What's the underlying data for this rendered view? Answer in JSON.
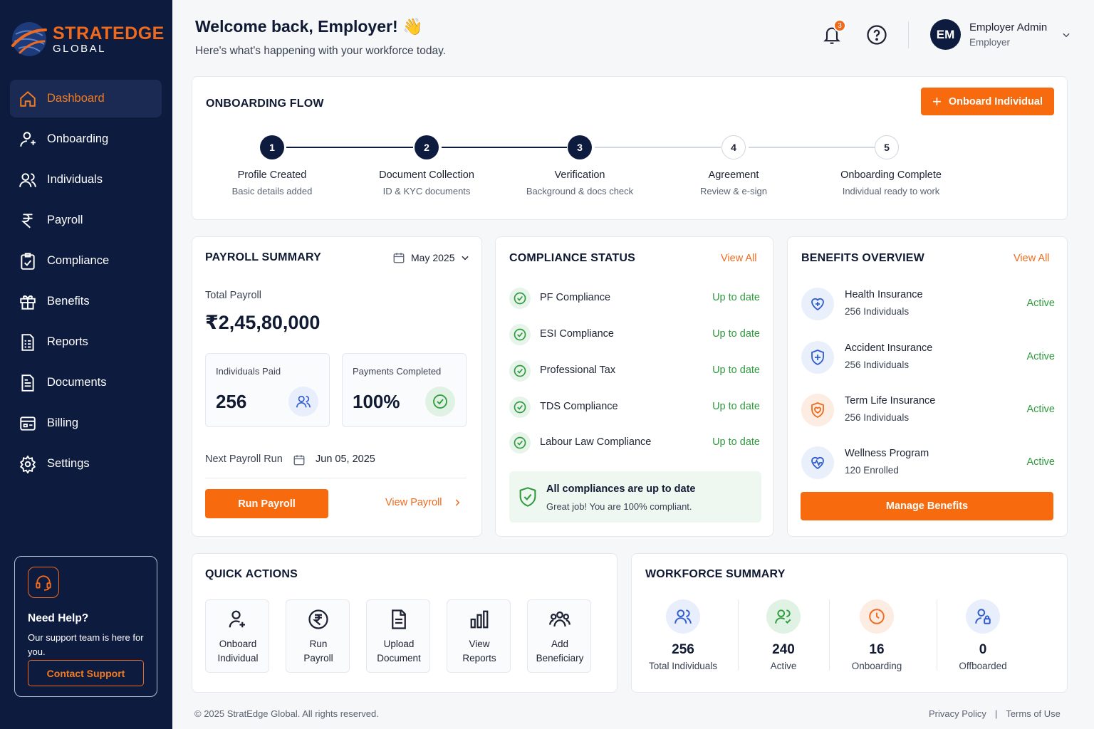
{
  "brand": {
    "name_line1": "STRATEDGE",
    "name_line2": "GLOBAL"
  },
  "colors": {
    "sidebar": "#0d1b3f",
    "accent": "#f76a0e",
    "success": "#2f9a3e"
  },
  "sidebar": {
    "items": [
      {
        "label": "Dashboard",
        "icon": "home-icon",
        "active": true
      },
      {
        "label": "Onboarding",
        "icon": "user-plus-icon"
      },
      {
        "label": "Individuals",
        "icon": "users-icon"
      },
      {
        "label": "Payroll",
        "icon": "rupee-icon"
      },
      {
        "label": "Compliance",
        "icon": "clipboard-check-icon"
      },
      {
        "label": "Benefits",
        "icon": "gift-icon"
      },
      {
        "label": "Reports",
        "icon": "report-icon"
      },
      {
        "label": "Documents",
        "icon": "document-icon"
      },
      {
        "label": "Billing",
        "icon": "billing-icon"
      },
      {
        "label": "Settings",
        "icon": "gear-icon"
      }
    ],
    "help": {
      "title": "Need Help?",
      "text": "Our support team is here for you.",
      "button": "Contact Support"
    }
  },
  "header": {
    "welcome": "Welcome back, Employer! 👋",
    "subtitle": "Here's what's happening with your workforce today.",
    "notifications": "3",
    "avatar_initials": "EM",
    "user_name": "Employer Admin",
    "user_role": "Employer"
  },
  "onboarding": {
    "title": "ONBOARDING FLOW",
    "button": "Onboard Individual",
    "completed_steps": 3,
    "steps": [
      {
        "num": "1",
        "label": "Profile Created",
        "sub": "Basic details added"
      },
      {
        "num": "2",
        "label": "Document Collection",
        "sub": "ID & KYC documents"
      },
      {
        "num": "3",
        "label": "Verification",
        "sub": "Background & docs check"
      },
      {
        "num": "4",
        "label": "Agreement",
        "sub": "Review & e-sign"
      },
      {
        "num": "5",
        "label": "Onboarding Complete",
        "sub": "Individual ready to work"
      }
    ]
  },
  "payroll": {
    "title": "PAYROLL SUMMARY",
    "period": "May 2025",
    "total_label": "Total Payroll",
    "total_value": "₹2,45,80,000",
    "paid_label": "Individuals Paid",
    "paid_value": "256",
    "completed_label": "Payments Completed",
    "completed_value": "100%",
    "next_label": "Next Payroll Run",
    "next_date": "Jun 05, 2025",
    "run_button": "Run Payroll",
    "view_link": "View Payroll"
  },
  "compliance": {
    "title": "COMPLIANCE STATUS",
    "view_all": "View All",
    "items": [
      {
        "name": "PF Compliance",
        "status": "Up to date"
      },
      {
        "name": "ESI Compliance",
        "status": "Up to date"
      },
      {
        "name": "Professional Tax",
        "status": "Up to date"
      },
      {
        "name": "TDS Compliance",
        "status": "Up to date"
      },
      {
        "name": "Labour Law Compliance",
        "status": "Up to date"
      }
    ],
    "banner_title": "All compliances are up to date",
    "banner_text": "Great job! You are 100% compliant."
  },
  "benefits": {
    "title": "BENEFITS OVERVIEW",
    "view_all": "View All",
    "items": [
      {
        "name": "Health Insurance",
        "sub": "256 Individuals",
        "status": "Active",
        "icon": "health-icon"
      },
      {
        "name": "Accident Insurance",
        "sub": "256 Individuals",
        "status": "Active",
        "icon": "shield-icon"
      },
      {
        "name": "Term Life Insurance",
        "sub": "256 Individuals",
        "status": "Active",
        "icon": "life-icon"
      },
      {
        "name": "Wellness Program",
        "sub": "120 Enrolled",
        "status": "Active",
        "icon": "wellness-icon"
      }
    ],
    "button": "Manage Benefits"
  },
  "quick_actions": {
    "title": "QUICK ACTIONS",
    "items": [
      {
        "line1": "Onboard",
        "line2": "Individual",
        "icon": "add-user-icon"
      },
      {
        "line1": "Run",
        "line2": "Payroll",
        "icon": "rupee-icon"
      },
      {
        "line1": "Upload",
        "line2": "Document",
        "icon": "document-icon"
      },
      {
        "line1": "View",
        "line2": "Reports",
        "icon": "bar-chart-icon"
      },
      {
        "line1": "Add",
        "line2": "Beneficiary",
        "icon": "group-icon"
      }
    ]
  },
  "workforce": {
    "title": "WORKFORCE SUMMARY",
    "items": [
      {
        "value": "256",
        "label": "Total Individuals"
      },
      {
        "value": "240",
        "label": "Active"
      },
      {
        "value": "16",
        "label": "Onboarding"
      },
      {
        "value": "0",
        "label": "Offboarded"
      }
    ]
  },
  "footer": {
    "copyright": "© 2025 StratEdge Global. All rights reserved.",
    "privacy": "Privacy Policy",
    "separator": "|",
    "terms": "Terms of Use"
  }
}
